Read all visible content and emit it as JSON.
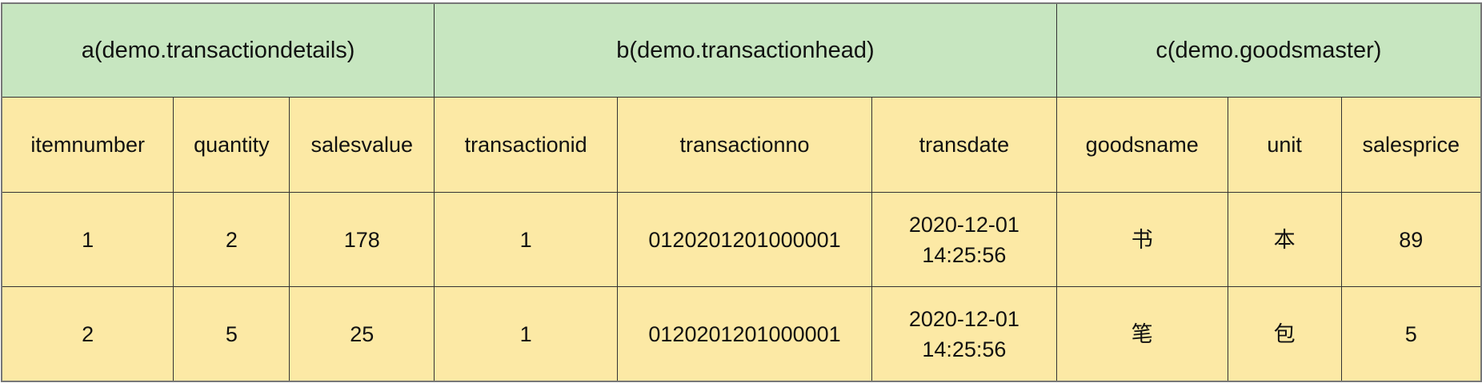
{
  "groups": [
    {
      "label": "a(demo.transactiondetails)"
    },
    {
      "label": "b(demo.transactionhead)"
    },
    {
      "label": "c(demo.goodsmaster)"
    }
  ],
  "columns": [
    "itemnumber",
    "quantity",
    "salesvalue",
    "transactionid",
    "transactionno",
    "transdate",
    "goodsname",
    "unit",
    "salesprice"
  ],
  "rows": [
    {
      "itemnumber": "1",
      "quantity": "2",
      "salesvalue": "178",
      "transactionid": "1",
      "transactionno": "0120201201000001",
      "transdate_date": "2020-12-01",
      "transdate_time": "14:25:56",
      "goodsname": "书",
      "unit": "本",
      "salesprice": "89"
    },
    {
      "itemnumber": "2",
      "quantity": "5",
      "salesvalue": "25",
      "transactionid": "1",
      "transactionno": "0120201201000001",
      "transdate_date": "2020-12-01",
      "transdate_time": "14:25:56",
      "goodsname": "笔",
      "unit": "包",
      "salesprice": "5"
    }
  ],
  "colors": {
    "group_header": "#c7e6c0",
    "cells": "#fce9a5",
    "border": "#333333"
  }
}
